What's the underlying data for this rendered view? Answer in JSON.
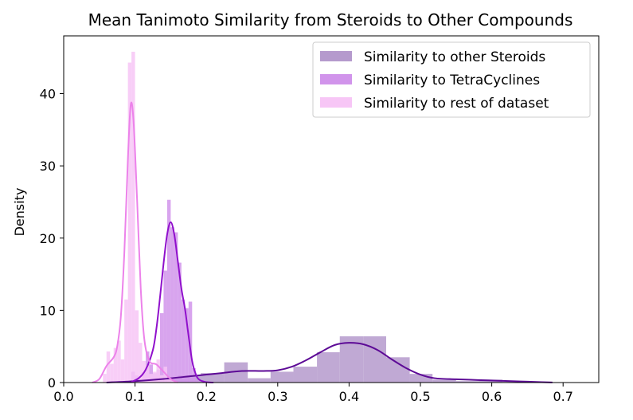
{
  "chart_data": {
    "type": "bar",
    "title": "Mean Tanimoto Similarity from Steroids to Other Compounds",
    "xlabel": "",
    "ylabel": "Density",
    "xlim": [
      0.0,
      0.75
    ],
    "ylim": [
      0,
      48
    ],
    "xticks": [
      "0.0",
      "0.1",
      "0.2",
      "0.3",
      "0.4",
      "0.5",
      "0.6",
      "0.7"
    ],
    "yticks": [
      "0",
      "10",
      "20",
      "30",
      "40"
    ],
    "legend_position": "top-right",
    "series": [
      {
        "name": "Similarity to other Steroids",
        "color": "#b59acd",
        "kde_color": "#5d0a96",
        "bins": [
          [
            0.095,
            0.127,
            0.3
          ],
          [
            0.127,
            0.16,
            0.7
          ],
          [
            0.16,
            0.192,
            1.0
          ],
          [
            0.192,
            0.225,
            1.3
          ],
          [
            0.225,
            0.258,
            2.8
          ],
          [
            0.258,
            0.29,
            0.6
          ],
          [
            0.29,
            0.322,
            1.5
          ],
          [
            0.322,
            0.355,
            2.2
          ],
          [
            0.355,
            0.387,
            4.2
          ],
          [
            0.387,
            0.42,
            6.4
          ],
          [
            0.42,
            0.452,
            6.4
          ],
          [
            0.452,
            0.485,
            3.5
          ],
          [
            0.485,
            0.517,
            1.2
          ],
          [
            0.517,
            0.55,
            0.4
          ],
          [
            0.55,
            0.582,
            0.2
          ],
          [
            0.582,
            0.615,
            0.4
          ],
          [
            0.615,
            0.648,
            0.1
          ],
          [
            0.648,
            0.68,
            0.1
          ]
        ],
        "kde": [
          [
            0.06,
            0.0
          ],
          [
            0.1,
            0.2
          ],
          [
            0.14,
            0.5
          ],
          [
            0.18,
            0.9
          ],
          [
            0.2,
            1.1
          ],
          [
            0.22,
            1.3
          ],
          [
            0.25,
            1.6
          ],
          [
            0.28,
            1.6
          ],
          [
            0.3,
            1.7
          ],
          [
            0.32,
            2.2
          ],
          [
            0.34,
            3.1
          ],
          [
            0.36,
            4.2
          ],
          [
            0.38,
            5.2
          ],
          [
            0.4,
            5.5
          ],
          [
            0.42,
            5.3
          ],
          [
            0.44,
            4.5
          ],
          [
            0.46,
            3.2
          ],
          [
            0.48,
            2.0
          ],
          [
            0.5,
            1.1
          ],
          [
            0.52,
            0.6
          ],
          [
            0.55,
            0.45
          ],
          [
            0.58,
            0.35
          ],
          [
            0.61,
            0.25
          ],
          [
            0.64,
            0.15
          ],
          [
            0.67,
            0.06
          ],
          [
            0.685,
            0.02
          ]
        ]
      },
      {
        "name": "Similarity to TetraCyclines",
        "color": "#d194eb",
        "kde_color": "#9010cc",
        "bins": [
          [
            0.095,
            0.1,
            1.5
          ],
          [
            0.1,
            0.105,
            1.0
          ],
          [
            0.105,
            0.11,
            0.5
          ],
          [
            0.11,
            0.115,
            1.4
          ],
          [
            0.115,
            0.12,
            4.3
          ],
          [
            0.12,
            0.125,
            2.5
          ],
          [
            0.125,
            0.13,
            1.3
          ],
          [
            0.13,
            0.135,
            1.8
          ],
          [
            0.135,
            0.14,
            9.6
          ],
          [
            0.14,
            0.145,
            15.5
          ],
          [
            0.145,
            0.15,
            25.3
          ],
          [
            0.15,
            0.155,
            21.5
          ],
          [
            0.155,
            0.16,
            20.8
          ],
          [
            0.16,
            0.165,
            16.6
          ],
          [
            0.165,
            0.17,
            11.5
          ],
          [
            0.17,
            0.175,
            10.3
          ],
          [
            0.175,
            0.18,
            11.2
          ],
          [
            0.18,
            0.185,
            2.0
          ],
          [
            0.185,
            0.19,
            0.3
          ]
        ],
        "kde": [
          [
            0.095,
            0.1
          ],
          [
            0.105,
            0.6
          ],
          [
            0.115,
            1.8
          ],
          [
            0.125,
            4.5
          ],
          [
            0.13,
            7.5
          ],
          [
            0.135,
            11.8
          ],
          [
            0.14,
            16.5
          ],
          [
            0.145,
            20.5
          ],
          [
            0.15,
            22.2
          ],
          [
            0.155,
            20.5
          ],
          [
            0.16,
            16.8
          ],
          [
            0.165,
            13.0
          ],
          [
            0.17,
            10.2
          ],
          [
            0.175,
            6.5
          ],
          [
            0.18,
            3.0
          ],
          [
            0.185,
            1.2
          ],
          [
            0.19,
            0.4
          ],
          [
            0.2,
            0.05
          ],
          [
            0.21,
            0.0
          ]
        ]
      },
      {
        "name": "Similarity to rest of dataset",
        "color": "#f7c6f6",
        "kde_color": "#ec82ea",
        "bins": [
          [
            0.055,
            0.06,
            1.2
          ],
          [
            0.06,
            0.065,
            4.3
          ],
          [
            0.065,
            0.07,
            2.6
          ],
          [
            0.07,
            0.075,
            4.8
          ],
          [
            0.075,
            0.08,
            5.8
          ],
          [
            0.08,
            0.085,
            3.2
          ],
          [
            0.085,
            0.09,
            11.5
          ],
          [
            0.09,
            0.095,
            44.3
          ],
          [
            0.095,
            0.1,
            45.8
          ],
          [
            0.1,
            0.105,
            10.0
          ],
          [
            0.105,
            0.11,
            5.5
          ],
          [
            0.11,
            0.115,
            3.0
          ],
          [
            0.115,
            0.12,
            2.4
          ],
          [
            0.12,
            0.125,
            1.2
          ],
          [
            0.125,
            0.13,
            1.5
          ],
          [
            0.13,
            0.135,
            3.2
          ],
          [
            0.135,
            0.14,
            1.0
          ],
          [
            0.14,
            0.145,
            2.2
          ],
          [
            0.145,
            0.15,
            0.4
          ],
          [
            0.15,
            0.155,
            0.3
          ]
        ],
        "kde": [
          [
            0.04,
            0.0
          ],
          [
            0.05,
            0.5
          ],
          [
            0.06,
            2.3
          ],
          [
            0.07,
            3.5
          ],
          [
            0.075,
            5.0
          ],
          [
            0.08,
            9.0
          ],
          [
            0.085,
            18.0
          ],
          [
            0.09,
            31.0
          ],
          [
            0.094,
            38.5
          ],
          [
            0.098,
            36.0
          ],
          [
            0.103,
            25.0
          ],
          [
            0.108,
            13.0
          ],
          [
            0.113,
            6.0
          ],
          [
            0.12,
            3.0
          ],
          [
            0.13,
            2.5
          ],
          [
            0.14,
            1.5
          ],
          [
            0.15,
            0.5
          ],
          [
            0.16,
            0.0
          ]
        ]
      }
    ]
  }
}
